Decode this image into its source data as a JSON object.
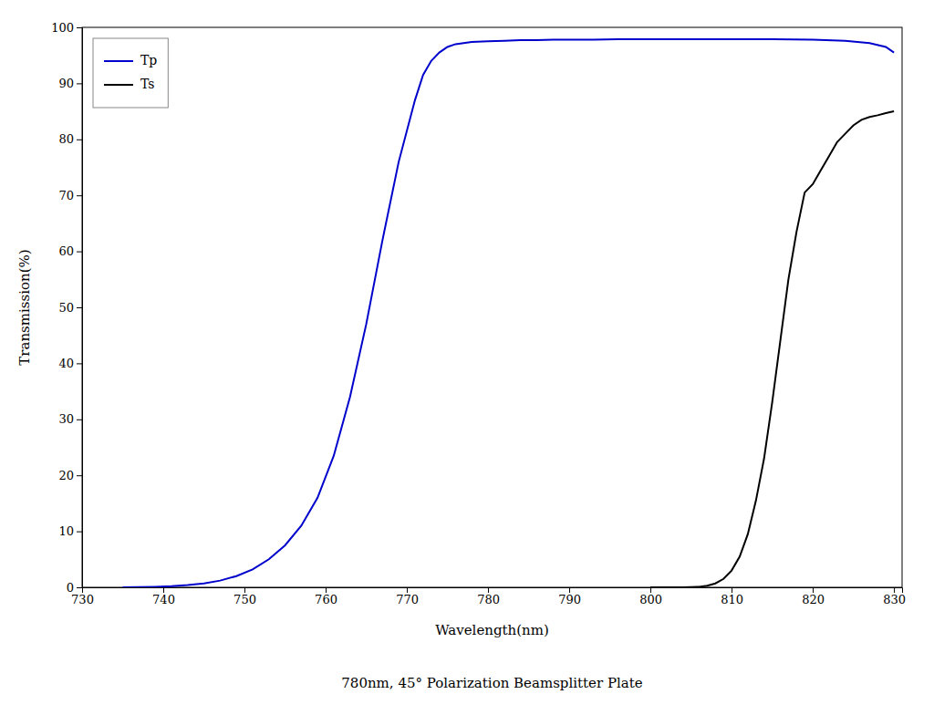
{
  "chart_data": {
    "type": "line",
    "title": "780nm, 45° Polarization Beamsplitter Plate",
    "x_label": "Wavelength(nm)",
    "y_label": "Transmission(%)",
    "xlim": [
      730,
      831
    ],
    "ylim": [
      0,
      100
    ],
    "xticks": [
      730,
      740,
      750,
      760,
      770,
      780,
      790,
      800,
      810,
      820,
      830
    ],
    "yticks": [
      0,
      10,
      20,
      30,
      40,
      50,
      60,
      70,
      80,
      90,
      100
    ],
    "grid": false,
    "legend": "upper left",
    "series": [
      {
        "name": "Tp",
        "color": "#0000CC",
        "x": [
          735,
          737,
          739,
          741,
          743,
          745,
          747,
          749,
          751,
          753,
          755,
          757,
          759,
          761,
          763,
          765,
          767,
          769,
          771,
          772,
          773,
          774,
          775,
          776,
          777,
          778,
          780,
          782,
          784,
          786,
          788,
          790,
          793,
          796,
          800,
          805,
          810,
          815,
          820,
          824,
          827,
          829,
          830
        ],
        "values": [
          0.0,
          0.05,
          0.1,
          0.2,
          0.4,
          0.7,
          1.2,
          2.0,
          3.2,
          5.0,
          7.5,
          11.0,
          16.0,
          23.5,
          34.0,
          47.0,
          62.0,
          76.0,
          87.0,
          91.5,
          94.0,
          95.5,
          96.5,
          97.0,
          97.2,
          97.4,
          97.5,
          97.6,
          97.7,
          97.7,
          97.8,
          97.8,
          97.8,
          97.9,
          97.9,
          97.9,
          97.9,
          97.9,
          97.8,
          97.6,
          97.2,
          96.5,
          95.5
        ]
      },
      {
        "name": "Ts",
        "color": "#000000",
        "x": [
          800,
          802,
          804,
          805,
          806,
          807,
          808,
          809,
          810,
          811,
          812,
          813,
          814,
          815,
          816,
          817,
          818,
          819,
          820,
          821,
          822,
          823,
          824,
          825,
          826,
          827,
          828,
          829,
          830
        ],
        "values": [
          0.0,
          0.0,
          0.0,
          0.05,
          0.1,
          0.3,
          0.7,
          1.5,
          3.0,
          5.5,
          9.5,
          15.5,
          23.0,
          33.0,
          44.0,
          55.0,
          63.5,
          70.5,
          72.0,
          74.5,
          77.0,
          79.5,
          81.0,
          82.5,
          83.5,
          84.0,
          84.3,
          84.7,
          85.0
        ]
      }
    ]
  }
}
